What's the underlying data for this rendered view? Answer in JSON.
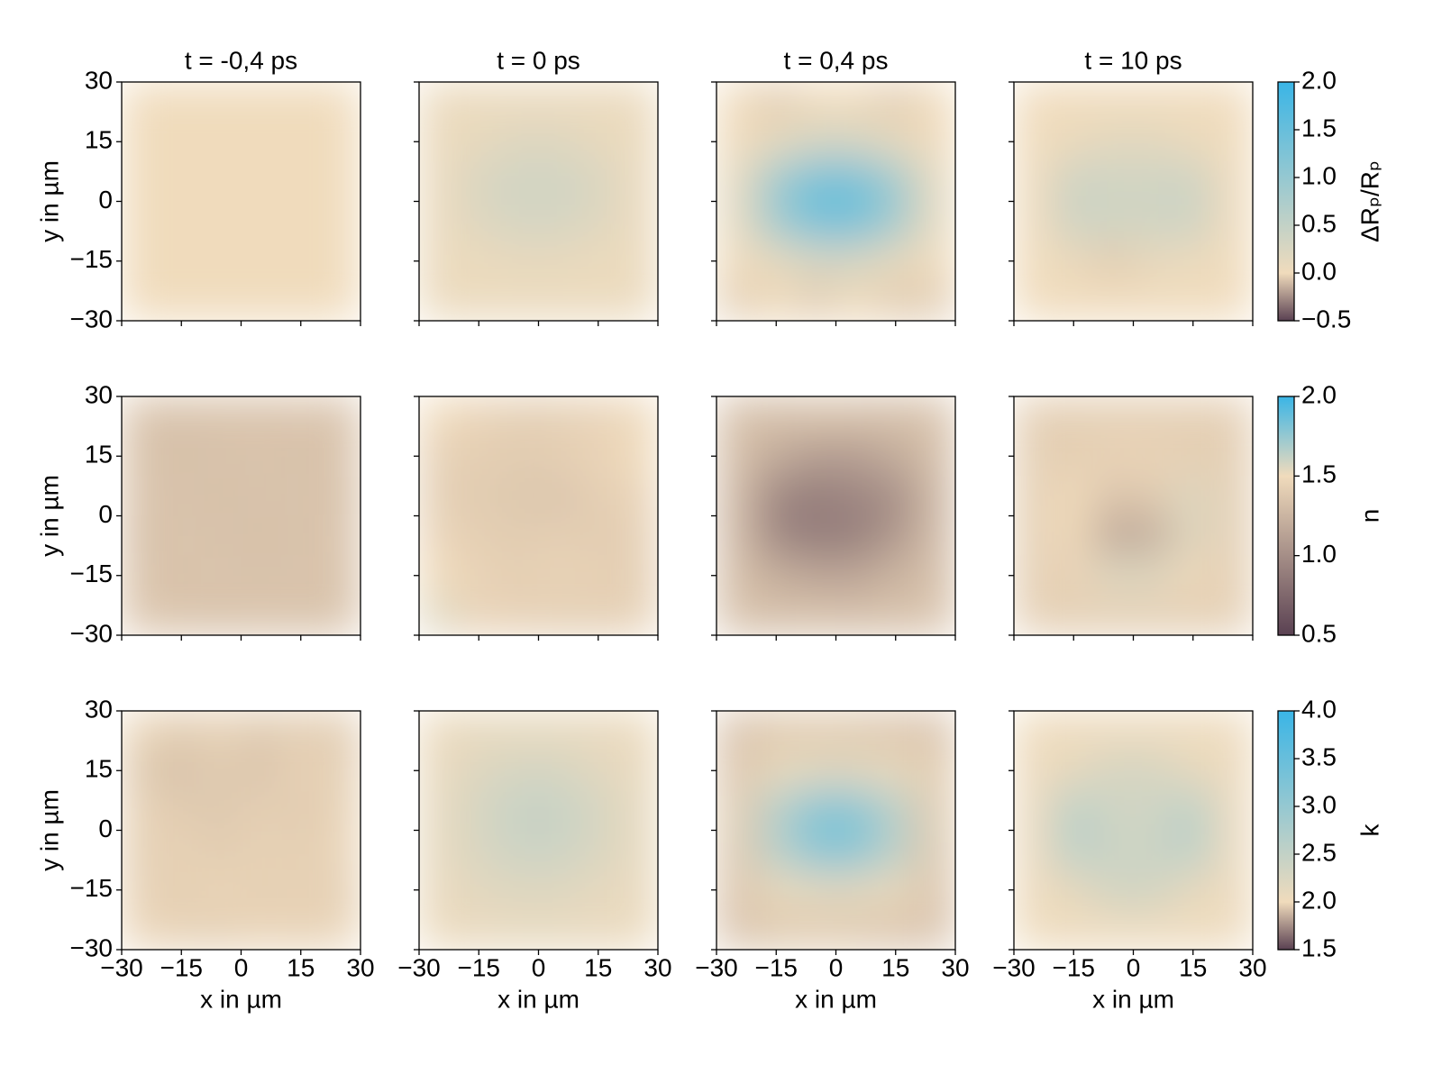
{
  "chart_data": [
    {
      "type": "heatmap",
      "colorbar_label": "ΔRₚ/Rₚ",
      "clim": [
        -0.5,
        2.0
      ],
      "cticks": [
        {
          "value": 2.0,
          "label": "2.0"
        },
        {
          "value": 1.5,
          "label": "1.5"
        },
        {
          "value": 1.0,
          "label": "1.0"
        },
        {
          "value": 0.5,
          "label": "0.5"
        },
        {
          "value": 0.0,
          "label": "0.0"
        },
        {
          "value": -0.5,
          "label": "−0.5"
        }
      ],
      "cmap": [
        {
          "value": -0.5,
          "color": "#5a4152"
        },
        {
          "value": 0.0,
          "color": "#f0dbbc"
        },
        {
          "value": 2.0,
          "color": "#3ab5e6"
        }
      ],
      "ylabel": "y in µm",
      "xlim": [
        -30,
        30
      ],
      "ylim": [
        -30,
        30
      ],
      "yticks": [
        30,
        15,
        0,
        {
          "value": -15,
          "label": "−15"
        },
        {
          "value": -30,
          "label": "−30"
        }
      ],
      "panels": [
        {
          "title": "t = -0,4 ps",
          "values": [
            [
              0,
              0,
              0,
              0,
              0,
              0
            ],
            [
              0,
              0,
              0,
              0,
              0,
              0
            ],
            [
              0,
              0,
              0,
              0,
              0,
              0
            ],
            [
              0,
              0,
              0,
              0,
              0,
              0
            ],
            [
              0,
              0,
              0,
              0,
              0,
              0
            ],
            [
              0,
              0,
              0,
              0,
              0,
              0
            ]
          ]
        },
        {
          "title": "t = 0 ps",
          "values": [
            [
              0.05,
              0.05,
              0.05,
              0.05,
              0.05,
              0.05
            ],
            [
              0.05,
              0.1,
              0.2,
              0.2,
              0.1,
              0.05
            ],
            [
              0.05,
              0.25,
              0.35,
              0.35,
              0.25,
              0.05
            ],
            [
              0.05,
              0.2,
              0.3,
              0.3,
              0.2,
              0.05
            ],
            [
              0.05,
              0.05,
              0.1,
              0.1,
              0.05,
              0.05
            ],
            [
              0.05,
              0.05,
              0.05,
              0.05,
              0.05,
              0.05
            ]
          ]
        },
        {
          "title": "t = 0,4 ps",
          "values": [
            [
              0,
              -0.05,
              0,
              0,
              -0.05,
              0
            ],
            [
              0,
              0.1,
              0.3,
              0.3,
              0.1,
              0
            ],
            [
              0.1,
              0.9,
              1.4,
              1.4,
              0.9,
              0.1
            ],
            [
              0.1,
              0.9,
              1.4,
              1.4,
              0.9,
              0.1
            ],
            [
              0,
              0.1,
              0.3,
              0.3,
              0.1,
              0
            ],
            [
              -0.05,
              0,
              -0.05,
              0,
              -0.05,
              -0.05
            ]
          ]
        },
        {
          "title": "t = 10 ps",
          "values": [
            [
              0,
              0,
              0,
              0,
              0,
              0
            ],
            [
              0,
              0.05,
              0.15,
              0.15,
              0.05,
              0
            ],
            [
              0,
              0.4,
              0.35,
              0.35,
              0.4,
              0
            ],
            [
              0,
              0.4,
              0.35,
              0.35,
              0.4,
              0
            ],
            [
              0,
              0.05,
              -0.05,
              0.1,
              0.05,
              0
            ],
            [
              0,
              0,
              0,
              0,
              0,
              0
            ]
          ]
        }
      ]
    },
    {
      "type": "heatmap",
      "colorbar_label": "n",
      "clim": [
        0.5,
        2.0
      ],
      "cticks": [
        {
          "value": 2.0,
          "label": "2.0"
        },
        {
          "value": 1.5,
          "label": "1.5"
        },
        {
          "value": 1.0,
          "label": "1.0"
        },
        {
          "value": 0.5,
          "label": "0.5"
        }
      ],
      "cmap": [
        {
          "value": 0.5,
          "color": "#5a4152"
        },
        {
          "value": 1.5,
          "color": "#f0dbbc"
        },
        {
          "value": 2.0,
          "color": "#3ab5e6"
        }
      ],
      "ylabel": "y in µm",
      "xlim": [
        -30,
        30
      ],
      "ylim": [
        -30,
        30
      ],
      "yticks": [
        30,
        15,
        0,
        {
          "value": -15,
          "label": "−15"
        },
        {
          "value": -30,
          "label": "−30"
        }
      ],
      "panels": [
        {
          "values": [
            [
              1.35,
              1.33,
              1.35,
              1.34,
              1.36,
              1.34
            ],
            [
              1.34,
              1.33,
              1.34,
              1.35,
              1.33,
              1.35
            ],
            [
              1.35,
              1.34,
              1.33,
              1.34,
              1.35,
              1.33
            ],
            [
              1.33,
              1.35,
              1.34,
              1.33,
              1.34,
              1.35
            ],
            [
              1.35,
              1.34,
              1.35,
              1.34,
              1.35,
              1.34
            ],
            [
              1.36,
              1.35,
              1.34,
              1.35,
              1.34,
              1.35
            ]
          ]
        },
        {
          "values": [
            [
              1.5,
              1.45,
              1.42,
              1.42,
              1.45,
              1.48
            ],
            [
              1.43,
              1.42,
              1.4,
              1.42,
              1.45,
              1.5
            ],
            [
              1.42,
              1.4,
              1.38,
              1.36,
              1.42,
              1.45
            ],
            [
              1.45,
              1.42,
              1.4,
              1.42,
              1.4,
              1.43
            ],
            [
              1.5,
              1.45,
              1.42,
              1.45,
              1.43,
              1.42
            ],
            [
              1.55,
              1.45,
              1.43,
              1.42,
              1.42,
              1.43
            ]
          ]
        },
        {
          "values": [
            [
              1.33,
              1.32,
              1.34,
              1.33,
              1.32,
              1.34
            ],
            [
              1.32,
              1.2,
              1.1,
              1.1,
              1.2,
              1.32
            ],
            [
              1.3,
              0.95,
              0.9,
              0.95,
              1.0,
              1.28
            ],
            [
              1.3,
              0.95,
              0.88,
              0.9,
              1.05,
              1.3
            ],
            [
              1.32,
              1.22,
              1.15,
              1.15,
              1.25,
              1.32
            ],
            [
              1.33,
              1.32,
              1.33,
              1.32,
              1.33,
              1.34
            ]
          ]
        },
        {
          "values": [
            [
              1.42,
              1.42,
              1.42,
              1.42,
              1.42,
              1.42
            ],
            [
              1.42,
              1.42,
              1.45,
              1.45,
              1.42,
              1.42
            ],
            [
              1.42,
              1.5,
              1.35,
              1.4,
              1.55,
              1.42
            ],
            [
              1.42,
              1.5,
              1.15,
              1.2,
              1.55,
              1.42
            ],
            [
              1.42,
              1.45,
              1.55,
              1.55,
              1.48,
              1.42
            ],
            [
              1.42,
              1.42,
              1.42,
              1.42,
              1.42,
              1.42
            ]
          ]
        }
      ]
    },
    {
      "type": "heatmap",
      "colorbar_label": "k",
      "clim": [
        1.5,
        4.0
      ],
      "cticks": [
        {
          "value": 4.0,
          "label": "4.0"
        },
        {
          "value": 3.5,
          "label": "3.5"
        },
        {
          "value": 3.0,
          "label": "3.0"
        },
        {
          "value": 2.5,
          "label": "2.5"
        },
        {
          "value": 2.0,
          "label": "2.0"
        },
        {
          "value": 1.5,
          "label": "1.5"
        }
      ],
      "cmap": [
        {
          "value": 1.5,
          "color": "#5a4152"
        },
        {
          "value": 2.0,
          "color": "#f0dbbc"
        },
        {
          "value": 4.0,
          "color": "#3ab5e6"
        }
      ],
      "ylabel": "y in µm",
      "xlabel": "x in µm",
      "xlim": [
        -30,
        30
      ],
      "ylim": [
        -30,
        30
      ],
      "xticks": [
        {
          "value": -30,
          "label": "−30"
        },
        {
          "value": -15,
          "label": "−15"
        },
        0,
        15,
        30
      ],
      "yticks": [
        30,
        15,
        0,
        {
          "value": -15,
          "label": "−15"
        },
        {
          "value": -30,
          "label": "−30"
        }
      ],
      "panels": [
        {
          "values": [
            [
              1.98,
              1.95,
              1.97,
              1.94,
              1.96,
              1.95
            ],
            [
              1.94,
              1.92,
              1.95,
              1.93,
              1.97,
              1.96
            ],
            [
              1.97,
              1.95,
              1.94,
              1.96,
              1.95,
              1.97
            ],
            [
              1.96,
              1.97,
              1.95,
              1.97,
              1.96,
              1.98
            ],
            [
              1.97,
              1.96,
              1.98,
              1.96,
              1.97,
              1.96
            ],
            [
              1.98,
              1.97,
              1.96,
              1.98,
              1.97,
              1.98
            ]
          ]
        },
        {
          "values": [
            [
              2.05,
              2.1,
              2.1,
              2.1,
              2.08,
              2.05
            ],
            [
              2.08,
              2.2,
              2.3,
              2.3,
              2.15,
              2.08
            ],
            [
              2.1,
              2.3,
              2.45,
              2.45,
              2.3,
              2.1
            ],
            [
              2.1,
              2.25,
              2.4,
              2.4,
              2.25,
              2.1
            ],
            [
              2.08,
              2.15,
              2.2,
              2.2,
              2.12,
              2.08
            ],
            [
              2.05,
              2.08,
              2.1,
              2.1,
              2.08,
              2.05
            ]
          ]
        },
        {
          "values": [
            [
              1.92,
              1.94,
              1.95,
              1.94,
              1.93,
              1.92
            ],
            [
              1.93,
              2.05,
              2.15,
              2.15,
              2.05,
              1.95
            ],
            [
              1.95,
              2.6,
              3.2,
              3.2,
              2.6,
              1.95
            ],
            [
              1.94,
              2.6,
              3.2,
              3.2,
              2.6,
              1.94
            ],
            [
              1.93,
              2.05,
              2.15,
              2.15,
              2.05,
              1.93
            ],
            [
              1.92,
              1.94,
              1.95,
              1.94,
              1.93,
              1.92
            ]
          ]
        },
        {
          "values": [
            [
              2.02,
              2.03,
              2.02,
              2.03,
              2.02,
              2.03
            ],
            [
              2.03,
              2.1,
              2.3,
              2.3,
              2.1,
              2.03
            ],
            [
              2.03,
              2.6,
              2.35,
              2.35,
              2.6,
              2.03
            ],
            [
              2.03,
              2.6,
              2.4,
              2.4,
              2.6,
              2.03
            ],
            [
              2.03,
              2.1,
              2.35,
              2.35,
              2.1,
              2.03
            ],
            [
              2.02,
              2.03,
              2.02,
              2.03,
              2.02,
              2.03
            ]
          ]
        }
      ]
    }
  ]
}
